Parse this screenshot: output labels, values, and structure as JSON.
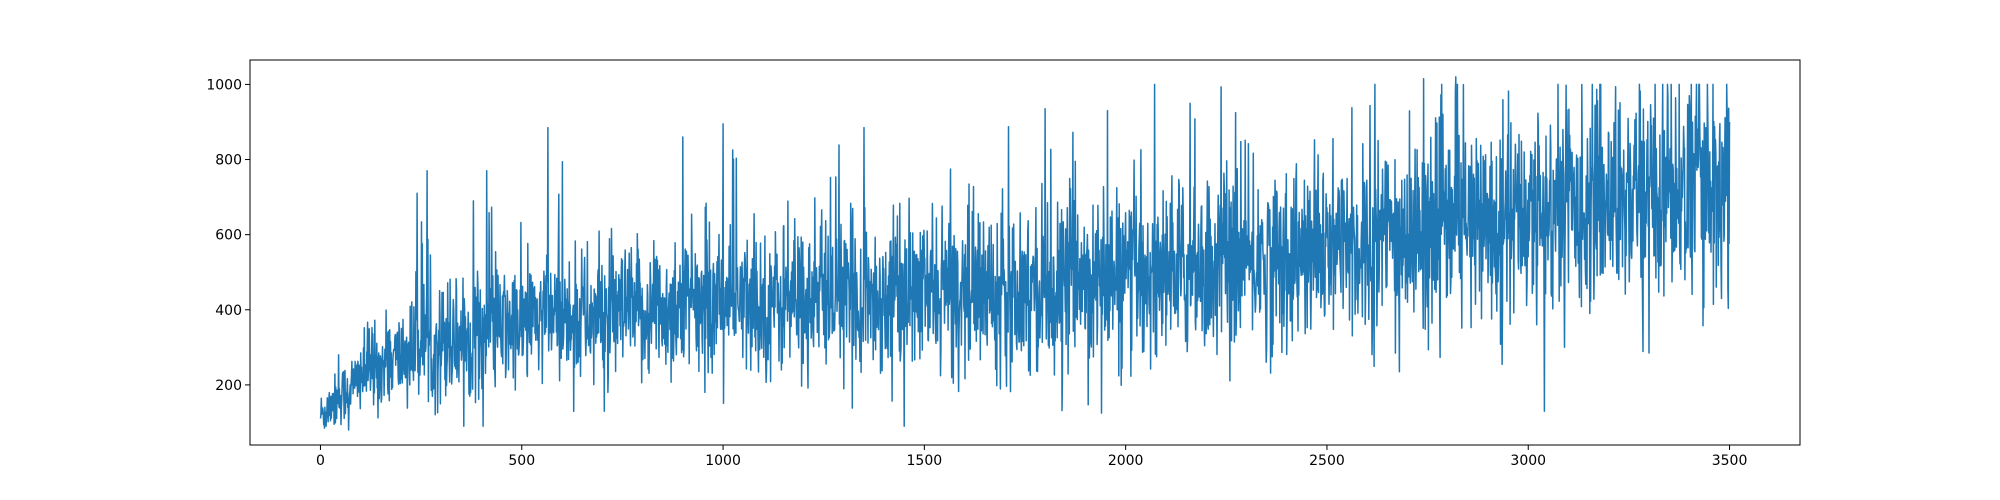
{
  "chart_data": {
    "type": "line",
    "title": "",
    "xlabel": "",
    "ylabel": "",
    "xlim": [
      -175,
      3675
    ],
    "ylim": [
      40,
      1065
    ],
    "xticks": [
      0,
      500,
      1000,
      1500,
      2000,
      2500,
      3000,
      3500
    ],
    "yticks": [
      200,
      400,
      600,
      800,
      1000
    ],
    "grid": false,
    "legend": "none",
    "series": [
      {
        "color": "#1f77b4",
        "n_points": 3500,
        "x_range": [
          0,
          3500
        ],
        "trend_anchors": [
          {
            "x": 0,
            "y": 120
          },
          {
            "x": 100,
            "y": 220
          },
          {
            "x": 250,
            "y": 300
          },
          {
            "x": 500,
            "y": 360
          },
          {
            "x": 1000,
            "y": 410
          },
          {
            "x": 1500,
            "y": 440
          },
          {
            "x": 2000,
            "y": 480
          },
          {
            "x": 2500,
            "y": 550
          },
          {
            "x": 2800,
            "y": 610
          },
          {
            "x": 3000,
            "y": 650
          },
          {
            "x": 3200,
            "y": 700
          },
          {
            "x": 3500,
            "y": 720
          }
        ],
        "noise_sd_anchors": [
          {
            "x": 0,
            "y": 30
          },
          {
            "x": 300,
            "y": 80
          },
          {
            "x": 1500,
            "y": 100
          },
          {
            "x": 2500,
            "y": 120
          },
          {
            "x": 3500,
            "y": 140
          }
        ],
        "notable_points": [
          {
            "x": 10,
            "y": 85
          },
          {
            "x": 20,
            "y": 140
          },
          {
            "x": 45,
            "y": 280
          },
          {
            "x": 70,
            "y": 80
          },
          {
            "x": 240,
            "y": 710
          },
          {
            "x": 265,
            "y": 770
          },
          {
            "x": 380,
            "y": 690
          },
          {
            "x": 413,
            "y": 770
          },
          {
            "x": 565,
            "y": 885
          },
          {
            "x": 705,
            "y": 130
          },
          {
            "x": 900,
            "y": 860
          },
          {
            "x": 1000,
            "y": 895
          },
          {
            "x": 1300,
            "y": 190
          },
          {
            "x": 1350,
            "y": 885
          },
          {
            "x": 1800,
            "y": 935
          },
          {
            "x": 1940,
            "y": 125
          },
          {
            "x": 1955,
            "y": 930
          },
          {
            "x": 2160,
            "y": 950
          },
          {
            "x": 2680,
            "y": 235
          },
          {
            "x": 2740,
            "y": 1015
          },
          {
            "x": 2820,
            "y": 1020
          },
          {
            "x": 3040,
            "y": 130
          },
          {
            "x": 3090,
            "y": 300
          },
          {
            "x": 3300,
            "y": 285
          },
          {
            "x": 3400,
            "y": 970
          },
          {
            "x": 3480,
            "y": 430
          },
          {
            "x": 3500,
            "y": 900
          }
        ]
      }
    ]
  }
}
